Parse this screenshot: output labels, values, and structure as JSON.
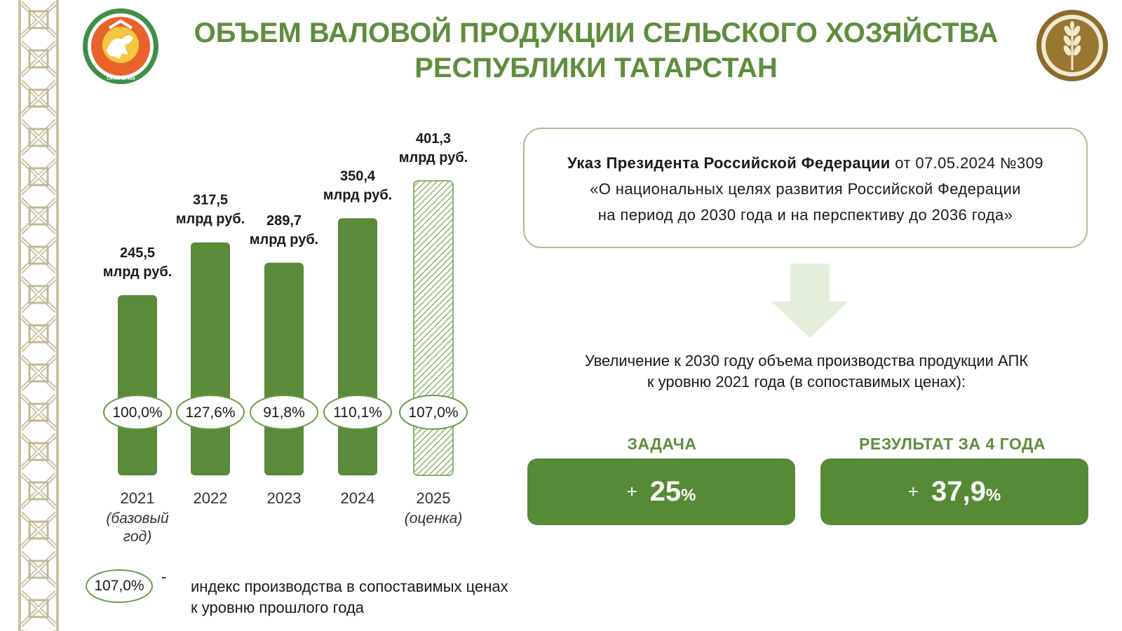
{
  "header": {
    "title_line1": "ОБЪЕМ ВАЛОВОЙ ПРОДУКЦИИ СЕЛЬСКОГО ХОЗЯЙСТВА",
    "title_line2": "РЕСПУБЛИКИ ТАТАРСТАН",
    "emblem_left_icon": "tatarstan-coat-of-arms-icon",
    "emblem_left_text": "ТАТАРСТАН",
    "emblem_right_icon": "wheat-emblem-icon"
  },
  "chart_data": {
    "type": "bar",
    "title": "ОБЪЕМ ВАЛОВОЙ ПРОДУКЦИИ СЕЛЬСКОГО ХОЗЯЙСТВА РЕСПУБЛИКИ ТАТАРСТАН",
    "unit": "млрд руб.",
    "categories": [
      "2021",
      "2022",
      "2023",
      "2024",
      "2025"
    ],
    "category_notes": [
      "(базовый год)",
      "",
      "",
      "",
      "(оценка)"
    ],
    "values": [
      245.5,
      317.5,
      289.7,
      350.4,
      401.3
    ],
    "value_labels": [
      "245,5",
      "317,5",
      "289,7",
      "350,4",
      "401,3"
    ],
    "index_labels": [
      "100,0%",
      "127,6%",
      "91,8%",
      "110,1%",
      "107,0%"
    ],
    "estimate": [
      false,
      false,
      false,
      false,
      true
    ],
    "ylim": [
      0,
      401.3
    ],
    "colors": {
      "bar": "#5a8a3a",
      "estimate_stripe": "#8fb26f",
      "oval_border": "#6a9a46"
    }
  },
  "legend": {
    "sample": "107,0%",
    "dash": "-",
    "line1": "индекс производства в сопоставимых ценах",
    "line2": "к уровню прошлого года"
  },
  "decree": {
    "bold": "Указ Президента Российской Федерации",
    "rest": " от 07.05.2024 №309",
    "line2": "«О национальных целях развития Российской Федерации",
    "line3": "на период до 2030 года и на перспективу до 2036 года»"
  },
  "arrow_icon": "down-arrow-icon",
  "goal": {
    "line1": "Увеличение к 2030 году объема производства продукции АПК",
    "line2": "к уровню 2021 года (в сопоставимых ценах):"
  },
  "cards": {
    "task": {
      "label": "ЗАДАЧА",
      "plus": "+",
      "value": "25",
      "pct": "%"
    },
    "result": {
      "label": "РЕЗУЛЬТАТ ЗА 4 ГОДА",
      "plus": "+",
      "value": "37,9",
      "pct": "%"
    }
  }
}
